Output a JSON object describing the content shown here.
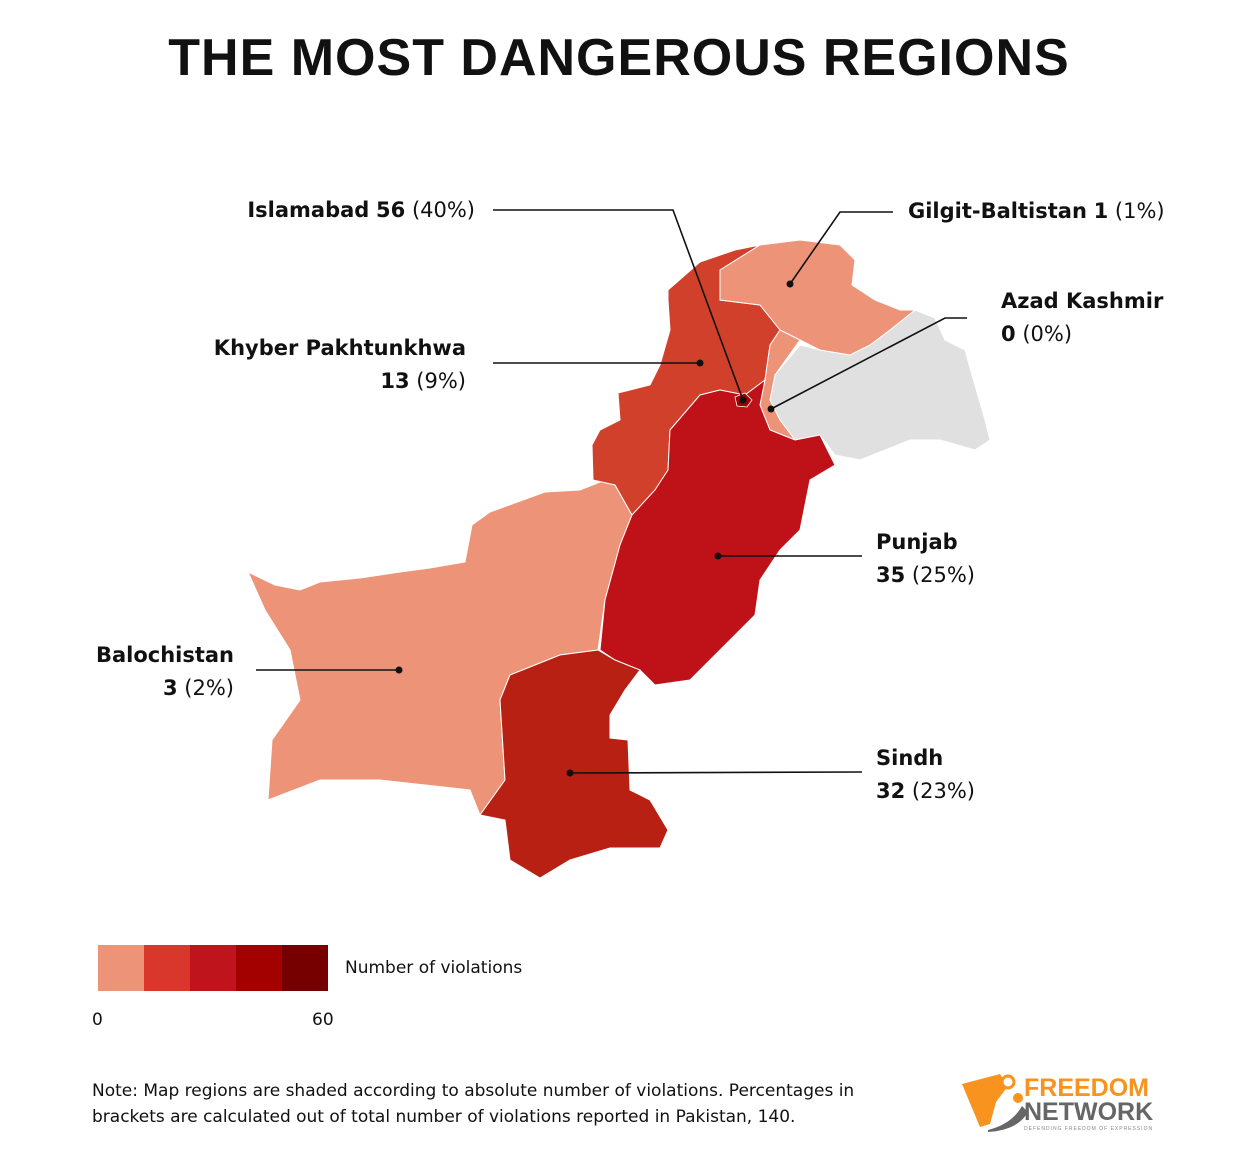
{
  "title": "THE MOST DANGEROUS REGIONS",
  "regions": [
    {
      "name": "Islamabad",
      "value": "56",
      "pct": "(40%)",
      "color": "#A00000"
    },
    {
      "name": "Gilgit-Baltistan",
      "value": "1",
      "pct": "(1%)",
      "color": "#ED9478"
    },
    {
      "name": "Azad Kashmir",
      "value": "0",
      "pct": "(0%)",
      "color": "#ED9478"
    },
    {
      "name": "Khyber Pakhtunkhwa",
      "value": "13",
      "pct": "(9%)",
      "color": "#D1402A"
    },
    {
      "name": "Punjab",
      "value": "35",
      "pct": "(25%)",
      "color": "#BF1118"
    },
    {
      "name": "Balochistan",
      "value": "3",
      "pct": "(2%)",
      "color": "#ED9478"
    },
    {
      "name": "Sindh",
      "value": "32",
      "pct": "(23%)",
      "color": "#B82013"
    }
  ],
  "other_territory_color": "#E0E0E0",
  "legend": {
    "title": "Number of violations",
    "min": "0",
    "max": "60",
    "colors": [
      "#ED9478",
      "#D9372C",
      "#C0141C",
      "#A30000",
      "#760000"
    ]
  },
  "note": "Note: Map regions are shaded according to absolute number of violations. Percentages in brackets are calculated out of total number of violations reported in Pakistan, 140.",
  "logo": {
    "line1": "FREEDOM",
    "line2": "NETWORK",
    "tagline": "DEFENDING FREEDOM OF EXPRESSION"
  }
}
